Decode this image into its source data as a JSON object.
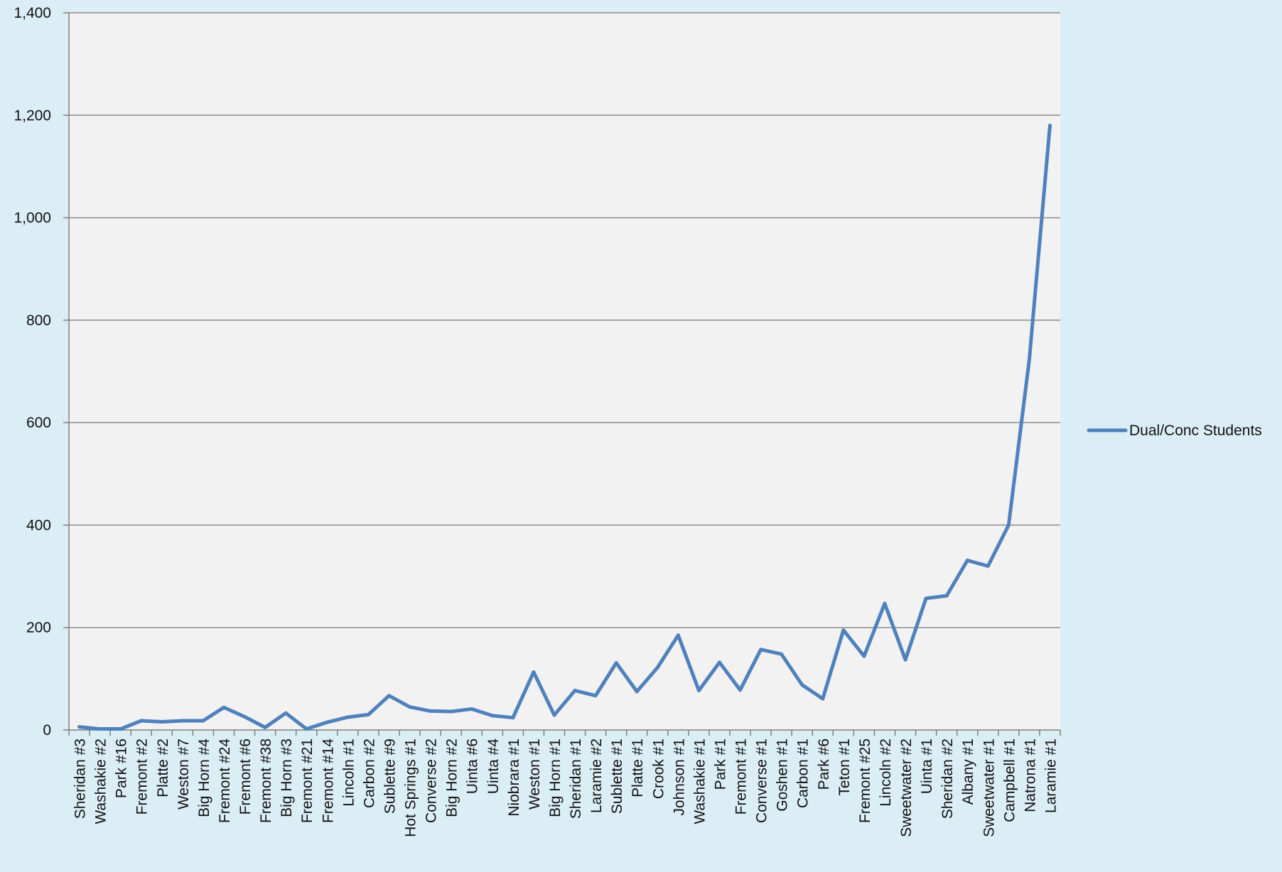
{
  "chart_data": {
    "type": "line",
    "title": "",
    "xlabel": "",
    "ylabel": "",
    "ylim": [
      0,
      1400
    ],
    "yticks": [
      0,
      200,
      400,
      600,
      800,
      1000,
      1200,
      1400
    ],
    "ytick_labels": [
      "0",
      "200",
      "400",
      "600",
      "800",
      "1,000",
      "1,200",
      "1,400"
    ],
    "grid": true,
    "legend_position": "right",
    "colors": {
      "series": "#4f81bd",
      "plot_background": "#f2f2f2",
      "page_background": "#dbeef5",
      "gridline": "#8c8c8c",
      "axis": "#7f7f7f"
    },
    "categories": [
      "Sheridan #3",
      "Washakie #2",
      "Park #16",
      "Fremont #2",
      "Platte #2",
      "Weston #7",
      "Big Horn #4",
      "Fremont #24",
      "Fremont #6",
      "Fremont #38",
      "Big Horn #3",
      "Fremont #21",
      "Fremont #14",
      "Lincoln #1",
      "Carbon #2",
      "Sublette #9",
      "Hot Springs #1",
      "Converse #2",
      "Big Horn #2",
      "Uinta #6",
      "Uinta #4",
      "Niobrara #1",
      "Weston #1",
      "Big Horn #1",
      "Sheridan #1",
      "Laramie #2",
      "Sublette #1",
      "Platte #1",
      "Crook #1",
      "Johnson #1",
      "Washakie #1",
      "Park #1",
      "Fremont #1",
      "Converse #1",
      "Goshen #1",
      "Carbon #1",
      "Park #6",
      "Teton #1",
      "Fremont #25",
      "Lincoln #2",
      "Sweetwater #2",
      "Uinta #1",
      "Sheridan #2",
      "Albany #1",
      "Sweetwater #1",
      "Campbell #1",
      "Natrona #1",
      "Laramie #1"
    ],
    "series": [
      {
        "name": "Dual/Conc Students",
        "values": [
          6,
          2,
          2,
          18,
          16,
          18,
          18,
          44,
          26,
          5,
          33,
          2,
          15,
          25,
          30,
          67,
          45,
          37,
          36,
          41,
          28,
          24,
          113,
          29,
          77,
          67,
          131,
          75,
          122,
          185,
          77,
          132,
          78,
          157,
          148,
          88,
          61,
          195,
          144,
          247,
          137,
          257,
          262,
          331,
          320,
          400,
          723,
          1180
        ]
      }
    ]
  }
}
